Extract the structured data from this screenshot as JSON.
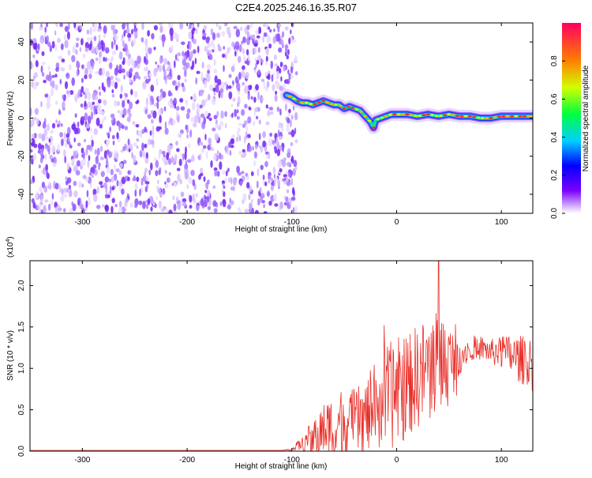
{
  "title": "C2E4.2025.246.16.35.R07",
  "chart_data": [
    {
      "type": "heatmap",
      "xlabel": "Height of straight line (km)",
      "ylabel": "Frequency (Hz)",
      "xlim": [
        -350,
        130
      ],
      "ylim": [
        -50,
        50
      ],
      "xticks": [
        -300,
        -200,
        -100,
        0,
        100
      ],
      "yticks": [
        -40,
        -20,
        0,
        20,
        40
      ],
      "noise_region_x": [
        -350,
        -100
      ],
      "ridge": {
        "name": "dominant frequency ridge",
        "x": [
          -105,
          -100,
          -95,
          -90,
          -85,
          -80,
          -75,
          -70,
          -65,
          -60,
          -55,
          -50,
          -45,
          -40,
          -35,
          -30,
          -25,
          -22,
          -20,
          -15,
          -10,
          -5,
          0,
          5,
          10,
          20,
          30,
          40,
          50,
          60,
          70,
          80,
          90,
          100,
          110,
          120,
          130
        ],
        "y": [
          12,
          11,
          9,
          8,
          8,
          7,
          8,
          9,
          8,
          7,
          7,
          5,
          6,
          5,
          4,
          1,
          -2,
          -5,
          -1,
          0,
          1,
          2,
          2,
          2,
          2,
          1,
          2,
          1,
          2,
          1,
          1,
          0,
          0,
          1,
          1,
          1,
          1
        ]
      },
      "colorbar": {
        "label": "Normalized spectral amplitude",
        "range": [
          0,
          1
        ],
        "ticks": [
          "0.0",
          "0.2",
          "0.4",
          "0.6",
          "0.8"
        ]
      }
    },
    {
      "type": "line",
      "xlabel": "Height of straight line (km)",
      "ylabel": "SNR (10 * v/v)",
      "y_scale_label": "(x10",
      "y_scale_exp": "4",
      "y_scale_close": ")",
      "xlim": [
        -350,
        130
      ],
      "ylim": [
        0,
        2.3
      ],
      "xticks": [
        -300,
        -200,
        -100,
        0,
        100
      ],
      "yticks": [
        "0.0",
        "0.5",
        "1.0",
        "1.5",
        "2.0"
      ],
      "series": [
        {
          "name": "SNR",
          "color": "#e8302a",
          "envelope_x": [
            -350,
            -110,
            -100,
            -90,
            -80,
            -70,
            -60,
            -50,
            -40,
            -30,
            -20,
            -10,
            0,
            10,
            20,
            30,
            40,
            50,
            60,
            70,
            80,
            90,
            100,
            110,
            120,
            130
          ],
          "envelope_y": [
            0.01,
            0.01,
            0.02,
            0.1,
            0.15,
            0.25,
            0.3,
            0.35,
            0.35,
            0.4,
            0.55,
            0.65,
            0.7,
            0.8,
            0.9,
            1.0,
            1.1,
            1.05,
            1.15,
            1.25,
            1.25,
            1.2,
            1.2,
            1.15,
            1.1,
            1.05
          ],
          "amplitude_y": [
            0.0,
            0.0,
            0.02,
            0.15,
            0.3,
            0.45,
            0.55,
            0.6,
            0.55,
            0.6,
            0.75,
            0.85,
            0.9,
            0.85,
            0.85,
            0.85,
            0.9,
            0.7,
            0.3,
            0.2,
            0.2,
            0.2,
            0.3,
            0.35,
            0.4,
            0.45
          ],
          "peak": {
            "x": 40,
            "y": 2.3
          }
        }
      ]
    }
  ]
}
